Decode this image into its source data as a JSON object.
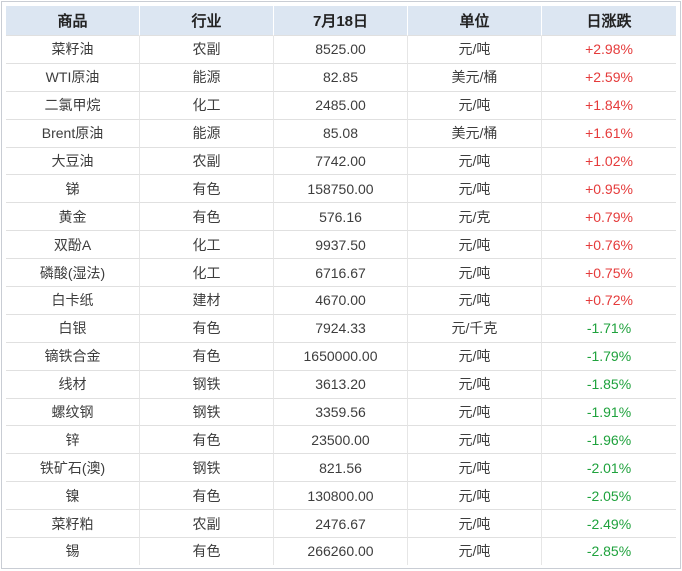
{
  "colors": {
    "header_bg": "#dce6f2",
    "header_text": "#222222",
    "body_text": "#3d3d3d",
    "up_red": "#e53b3b",
    "down_green": "#1fa23d",
    "grid_line": "#e0e0e0",
    "header_divider": "#ffffff",
    "outer_border": "#c9cdd4"
  },
  "chart_data": {
    "type": "table",
    "columns": [
      "商品",
      "行业",
      "7月18日",
      "单位",
      "日涨跌"
    ],
    "rows": [
      [
        "菜籽油",
        "农副",
        "8525.00",
        "元/吨",
        "+2.98%"
      ],
      [
        "WTI原油",
        "能源",
        "82.85",
        "美元/桶",
        "+2.59%"
      ],
      [
        "二氯甲烷",
        "化工",
        "2485.00",
        "元/吨",
        "+1.84%"
      ],
      [
        "Brent原油",
        "能源",
        "85.08",
        "美元/桶",
        "+1.61%"
      ],
      [
        "大豆油",
        "农副",
        "7742.00",
        "元/吨",
        "+1.02%"
      ],
      [
        "锑",
        "有色",
        "158750.00",
        "元/吨",
        "+0.95%"
      ],
      [
        "黄金",
        "有色",
        "576.16",
        "元/克",
        "+0.79%"
      ],
      [
        "双酚A",
        "化工",
        "9937.50",
        "元/吨",
        "+0.76%"
      ],
      [
        "磷酸(湿法)",
        "化工",
        "6716.67",
        "元/吨",
        "+0.75%"
      ],
      [
        "白卡纸",
        "建材",
        "4670.00",
        "元/吨",
        "+0.72%"
      ],
      [
        "白银",
        "有色",
        "7924.33",
        "元/千克",
        "-1.71%"
      ],
      [
        "镝铁合金",
        "有色",
        "1650000.00",
        "元/吨",
        "-1.79%"
      ],
      [
        "线材",
        "钢铁",
        "3613.20",
        "元/吨",
        "-1.85%"
      ],
      [
        "螺纹钢",
        "钢铁",
        "3359.56",
        "元/吨",
        "-1.91%"
      ],
      [
        "锌",
        "有色",
        "23500.00",
        "元/吨",
        "-1.96%"
      ],
      [
        "铁矿石(澳)",
        "钢铁",
        "821.56",
        "元/吨",
        "-2.01%"
      ],
      [
        "镍",
        "有色",
        "130800.00",
        "元/吨",
        "-2.05%"
      ],
      [
        "菜籽粕",
        "农副",
        "2476.67",
        "元/吨",
        "-2.49%"
      ],
      [
        "锡",
        "有色",
        "266260.00",
        "元/吨",
        "-2.85%"
      ]
    ],
    "legend_note": "red = rise, green = fall",
    "grid": true,
    "legend_position": "none"
  }
}
